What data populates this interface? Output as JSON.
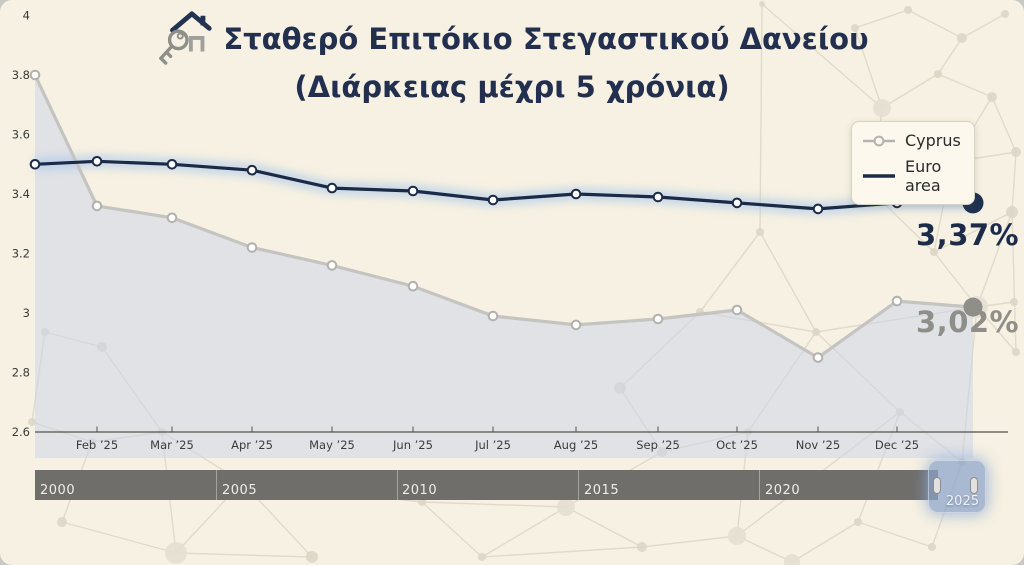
{
  "title": {
    "line1": "Σταθερό Επιτόκιο Στεγαστικού Δανείου",
    "line2": "(Διάρκειας μέχρι 5 χρόνια)"
  },
  "legend": {
    "items": [
      {
        "label": "Cyprus"
      },
      {
        "label": "Euro area"
      }
    ]
  },
  "chart_data": {
    "type": "line",
    "title": "Σταθερό Επιτόκιο Στεγαστικού Δανείου (Διάρκειας μέχρι 5 χρόνια)",
    "x_tick_labels": [
      "Feb ’25",
      "Mar ’25",
      "Apr ’25",
      "May ’25",
      "Jun ’25",
      "Jul ’25",
      "Aug ’25",
      "Sep ’25",
      "Oct ’25",
      "Nov ’25",
      "Dec ’25"
    ],
    "y_tick_labels": [
      "4",
      "3.8",
      "3.6",
      "3.4",
      "3.2",
      "3",
      "2.8",
      "2.6"
    ],
    "ylim": [
      2.6,
      4.0
    ],
    "grid": false,
    "legend_position": "top-right",
    "series": [
      {
        "name": "Cyprus",
        "line_color": "#c6c4c0",
        "marker_stroke": "#b3b1ad",
        "end_dot_color": "#8f8e88",
        "end_label": "3,02%",
        "area_fill": "rgba(205,214,232,0.55)",
        "values": [
          3.8,
          3.36,
          3.32,
          3.22,
          3.16,
          3.09,
          2.99,
          2.96,
          2.98,
          3.01,
          2.85,
          3.04,
          3.02
        ]
      },
      {
        "name": "Euro area",
        "line_color": "#1b2a47",
        "marker_stroke": "#1b2a47",
        "end_dot_color": "#1f3152",
        "end_label": "3,37%",
        "glow_color": "#a7c6ea",
        "values": [
          3.5,
          3.51,
          3.5,
          3.48,
          3.42,
          3.41,
          3.38,
          3.4,
          3.39,
          3.37,
          3.35,
          3.37,
          3.37
        ]
      }
    ]
  },
  "navigator": {
    "years": [
      "2000",
      "2005",
      "2010",
      "2015",
      "2020"
    ],
    "selected_label": "2025"
  },
  "colors": {
    "background": "#f6f1e2",
    "title": "#222f4e",
    "axis_text": "#3b3b3b",
    "navigator_bar": "#6f6e6b",
    "navigator_selection": "#8ba3cb"
  }
}
